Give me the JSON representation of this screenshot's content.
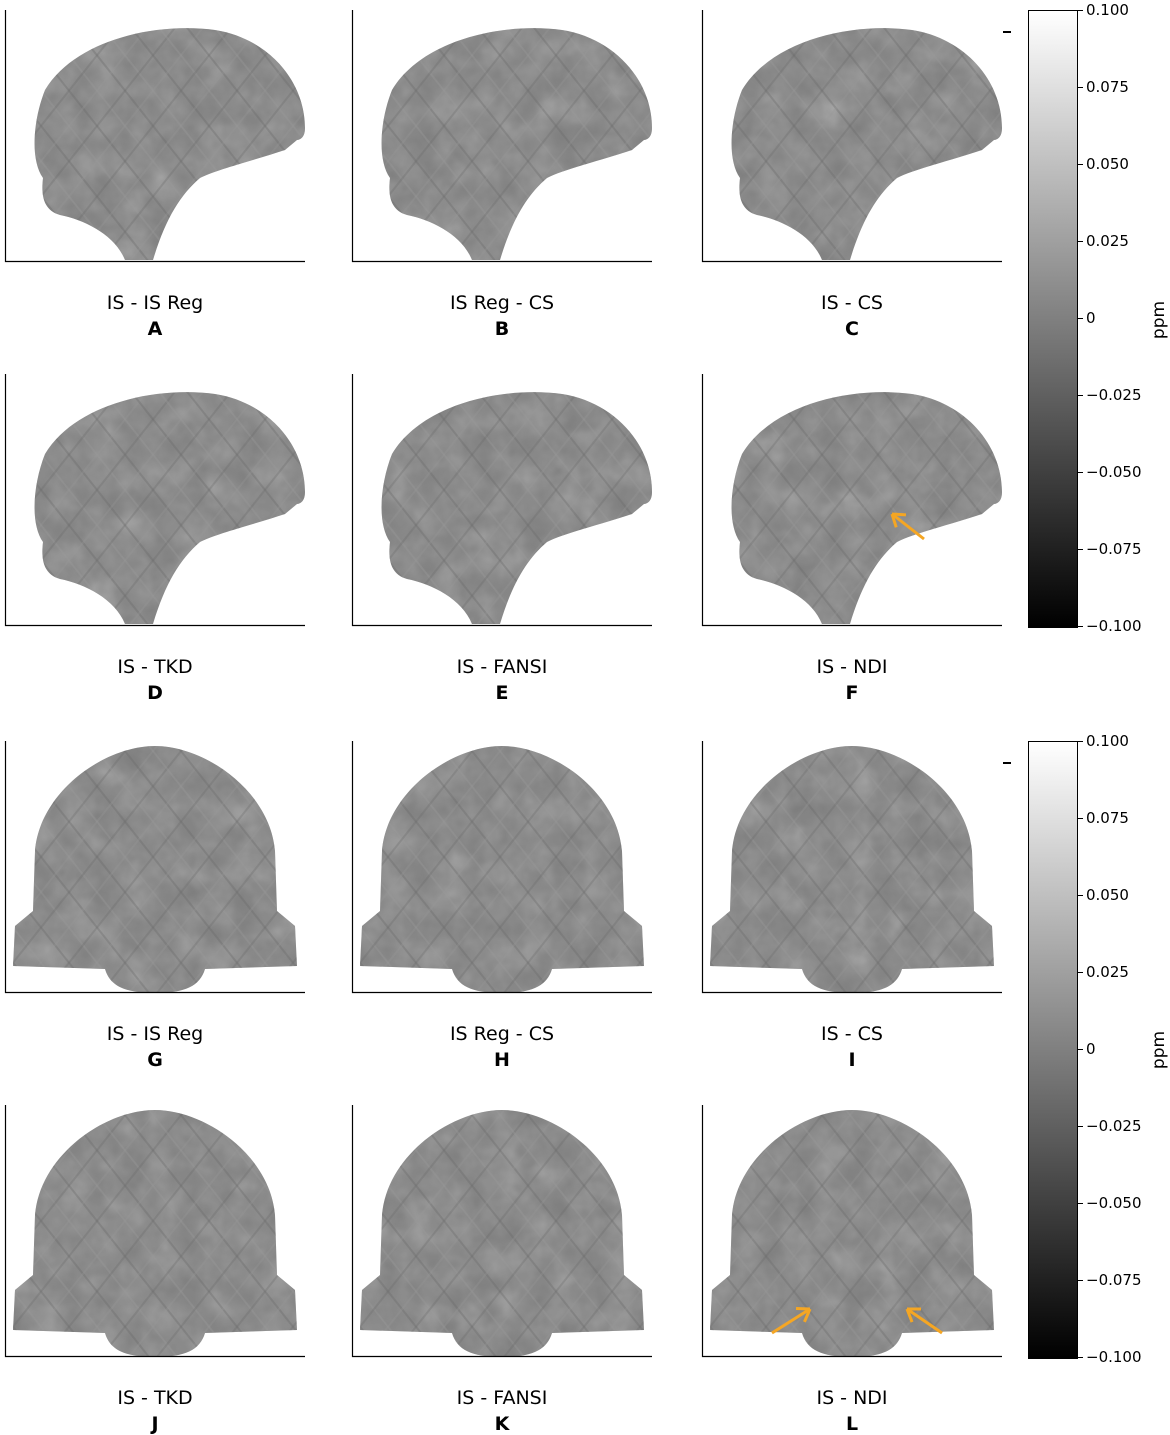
{
  "panels_top": [
    {
      "caption": "IS - IS Reg",
      "letter": "A",
      "view": "sagittal",
      "arrows": 0
    },
    {
      "caption": "IS Reg - CS",
      "letter": "B",
      "view": "sagittal",
      "arrows": 0
    },
    {
      "caption": "IS - CS",
      "letter": "C",
      "view": "sagittal",
      "arrows": 0
    },
    {
      "caption": "IS - TKD",
      "letter": "D",
      "view": "sagittal",
      "arrows": 0
    },
    {
      "caption": "IS - FANSI",
      "letter": "E",
      "view": "sagittal",
      "arrows": 0
    },
    {
      "caption": "IS - NDI",
      "letter": "F",
      "view": "sagittal",
      "arrows": 1
    }
  ],
  "panels_bottom": [
    {
      "caption": "IS - IS Reg",
      "letter": "G",
      "view": "coronal",
      "arrows": 0
    },
    {
      "caption": "IS Reg - CS",
      "letter": "H",
      "view": "coronal",
      "arrows": 0
    },
    {
      "caption": "IS - CS",
      "letter": "I",
      "view": "coronal",
      "arrows": 0
    },
    {
      "caption": "IS - TKD",
      "letter": "J",
      "view": "coronal",
      "arrows": 0
    },
    {
      "caption": "IS - FANSI",
      "letter": "K",
      "view": "coronal",
      "arrows": 0
    },
    {
      "caption": "IS - NDI",
      "letter": "L",
      "view": "coronal",
      "arrows": 2
    }
  ],
  "colorbar": {
    "label": "ppm",
    "ticks": [
      "0.100",
      "0.075",
      "0.050",
      "0.025",
      "0",
      "−0.025",
      "−0.050",
      "−0.075",
      "−0.100"
    ],
    "range": [
      -0.1,
      0.1
    ],
    "colormap": "gray"
  },
  "colors": {
    "arrow": "#f5a623",
    "tissue": "#7f7f7f",
    "background": "#ffffff"
  }
}
